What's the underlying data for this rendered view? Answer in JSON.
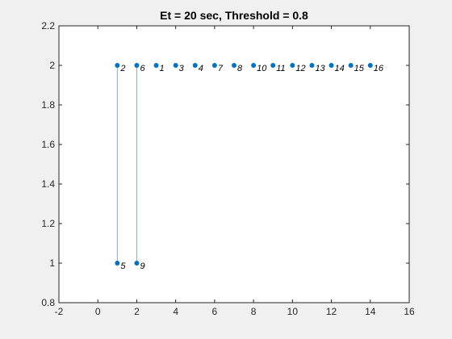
{
  "chart_data": {
    "type": "scatter",
    "title": "Et = 20 sec, Threshold = 0.8",
    "xlabel": "",
    "ylabel": "",
    "xlim": [
      -2,
      16
    ],
    "ylim": [
      0.8,
      2.2
    ],
    "xticks": [
      -2,
      0,
      2,
      4,
      6,
      8,
      10,
      12,
      14,
      16
    ],
    "yticks": [
      0.8,
      1,
      1.2,
      1.4,
      1.6,
      1.8,
      2,
      2.2
    ],
    "xtick_labels": [
      "-2",
      "0",
      "2",
      "4",
      "6",
      "8",
      "10",
      "12",
      "14",
      "16"
    ],
    "ytick_labels": [
      "0.8",
      "1",
      "1.2",
      "1.4",
      "1.6",
      "1.8",
      "2",
      "2.2"
    ],
    "grid": false,
    "marker_color": "#0072BD",
    "link_color": "#4DBEEE",
    "points": [
      {
        "x": 1,
        "y": 2,
        "label": "2"
      },
      {
        "x": 2,
        "y": 2,
        "label": "6"
      },
      {
        "x": 3,
        "y": 2,
        "label": "1"
      },
      {
        "x": 4,
        "y": 2,
        "label": "3"
      },
      {
        "x": 5,
        "y": 2,
        "label": "4"
      },
      {
        "x": 6,
        "y": 2,
        "label": "7"
      },
      {
        "x": 7,
        "y": 2,
        "label": "8"
      },
      {
        "x": 8,
        "y": 2,
        "label": "10"
      },
      {
        "x": 9,
        "y": 2,
        "label": "11"
      },
      {
        "x": 10,
        "y": 2,
        "label": "12"
      },
      {
        "x": 11,
        "y": 2,
        "label": "13"
      },
      {
        "x": 12,
        "y": 2,
        "label": "14"
      },
      {
        "x": 13,
        "y": 2,
        "label": "15"
      },
      {
        "x": 14,
        "y": 2,
        "label": "16"
      },
      {
        "x": 1,
        "y": 1,
        "label": "5"
      },
      {
        "x": 2,
        "y": 1,
        "label": "9"
      }
    ],
    "links": [
      {
        "x1": 1,
        "y1": 1,
        "x2": 1,
        "y2": 2
      },
      {
        "x1": 2,
        "y1": 1,
        "x2": 2,
        "y2": 2
      }
    ]
  }
}
